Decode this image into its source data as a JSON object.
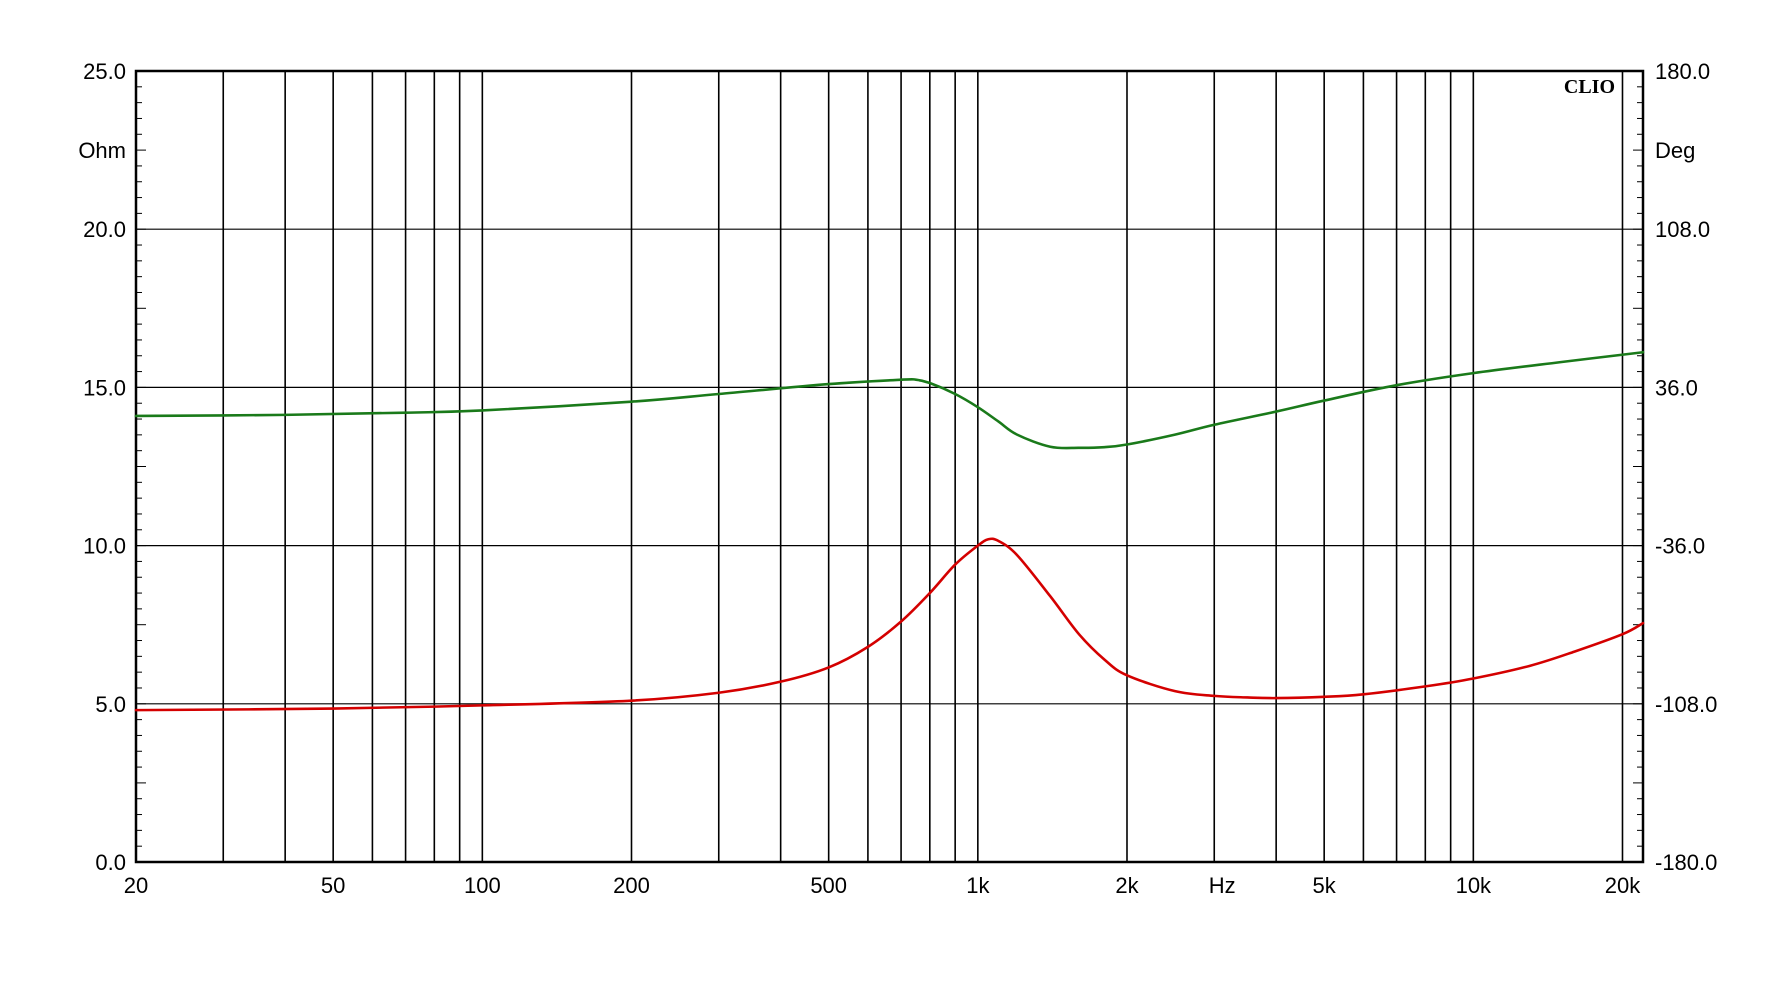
{
  "chart_data": {
    "type": "line",
    "title": "",
    "brand": "CLIO",
    "x_scale": "log",
    "xlim": [
      20,
      22000
    ],
    "x_unit_label": "Hz",
    "x_tick_values": [
      20,
      50,
      100,
      200,
      500,
      1000,
      2000,
      5000,
      10000,
      20000
    ],
    "x_tick_labels": [
      "20",
      "50",
      "100",
      "200",
      "500",
      "1k",
      "2k",
      "5k",
      "10k",
      "20k"
    ],
    "y_left": {
      "unit_label": "Ohm",
      "lim": [
        0,
        25
      ],
      "ticks": [
        0,
        5,
        10,
        15,
        20,
        25
      ],
      "tick_labels": [
        "0.0",
        "5.0",
        "10.0",
        "15.0",
        "20.0",
        "25.0"
      ]
    },
    "y_right": {
      "unit_label": "Deg",
      "lim": [
        -180,
        180
      ],
      "ticks": [
        -180,
        -108,
        -36,
        36,
        108,
        180
      ],
      "tick_labels": [
        "-180.0",
        "-108.0",
        "-36.0",
        "36.0",
        "108.0",
        "180.0"
      ]
    },
    "grid": true,
    "series": [
      {
        "color": "#d40000",
        "axis": "left",
        "x": [
          20,
          50,
          100,
          200,
          300,
          400,
          500,
          600,
          700,
          800,
          900,
          1000,
          1050,
          1100,
          1200,
          1400,
          1600,
          1800,
          2000,
          2500,
          3000,
          3500,
          4000,
          5000,
          6000,
          8000,
          10000,
          13000,
          16000,
          20000,
          22000
        ],
        "values": [
          4.8,
          4.85,
          4.95,
          5.1,
          5.35,
          5.7,
          6.15,
          6.8,
          7.6,
          8.5,
          9.4,
          10.0,
          10.2,
          10.15,
          9.7,
          8.4,
          7.2,
          6.4,
          5.9,
          5.4,
          5.25,
          5.2,
          5.18,
          5.22,
          5.3,
          5.55,
          5.8,
          6.2,
          6.65,
          7.2,
          7.55
        ]
      },
      {
        "color": "#1a7a1a",
        "axis": "right",
        "x": [
          20,
          40,
          70,
          100,
          200,
          300,
          500,
          700,
          750,
          800,
          900,
          1000,
          1100,
          1200,
          1400,
          1600,
          1800,
          2000,
          2500,
          3000,
          4000,
          5000,
          7000,
          10000,
          15000,
          22000
        ],
        "values": [
          23.0,
          23.5,
          24.5,
          25.5,
          29.5,
          33.0,
          37.5,
          39.5,
          39.5,
          38.0,
          33.0,
          27.0,
          20.5,
          14.5,
          9.0,
          8.5,
          8.8,
          10.0,
          14.5,
          19.0,
          25.0,
          30.0,
          37.0,
          42.5,
          47.5,
          52.0
        ]
      }
    ]
  }
}
